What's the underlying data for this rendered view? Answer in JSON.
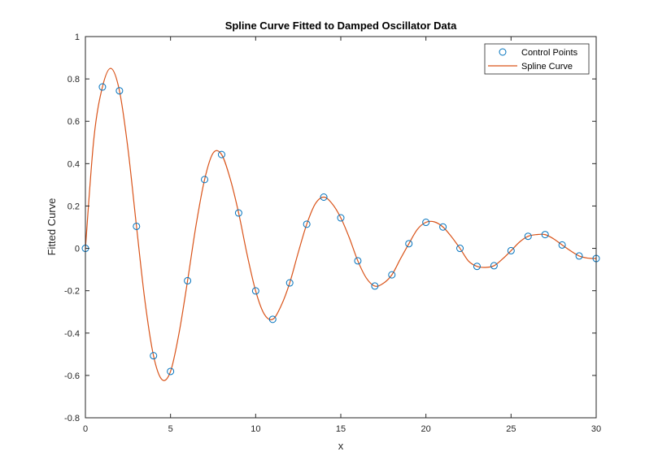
{
  "chart_data": {
    "type": "line",
    "title": "Spline Curve Fitted to Damped Oscillator Data",
    "xlabel": "x",
    "ylabel": "Fitted Curve",
    "xlim": [
      0,
      30
    ],
    "ylim": [
      -0.8,
      1
    ],
    "xticks": [
      "0",
      "5",
      "10",
      "15",
      "20",
      "25",
      "30"
    ],
    "yticks": [
      "-0.8",
      "-0.6",
      "-0.4",
      "-0.2",
      "0",
      "0.2",
      "0.4",
      "0.6",
      "0.8",
      "1"
    ],
    "grid": false,
    "legend_position": "top-right",
    "colors": {
      "markers": "#0072BD",
      "line": "#D95319",
      "axes": "#262626"
    },
    "series": [
      {
        "name": "Control Points",
        "kind": "markers",
        "marker": "circle",
        "x": [
          0,
          1,
          2,
          3,
          4,
          5,
          6,
          7,
          8,
          9,
          10,
          11,
          12,
          13,
          14,
          15,
          16,
          17,
          18,
          19,
          20,
          21,
          22,
          23,
          24,
          25,
          26,
          27,
          28,
          29,
          30
        ],
        "y": [
          0.0,
          0.762,
          0.744,
          0.104,
          -0.507,
          -0.581,
          -0.153,
          0.325,
          0.443,
          0.167,
          -0.201,
          -0.335,
          -0.163,
          0.114,
          0.242,
          0.144,
          -0.059,
          -0.178,
          -0.125,
          0.022,
          0.123,
          0.101,
          0.0,
          -0.085,
          -0.082,
          -0.011,
          0.057,
          0.065,
          0.016,
          -0.036,
          -0.048
        ]
      },
      {
        "name": "Spline Curve",
        "kind": "line",
        "x": [
          0,
          0.5,
          1,
          1.5,
          2,
          2.5,
          3,
          3.5,
          4,
          4.5,
          5,
          5.5,
          6,
          6.5,
          7,
          7.5,
          8,
          8.5,
          9,
          9.5,
          10,
          10.5,
          11,
          11.5,
          12,
          12.5,
          13,
          13.5,
          14,
          14.5,
          15,
          15.5,
          16,
          16.5,
          17,
          17.5,
          18,
          18.5,
          19,
          19.5,
          20,
          20.5,
          21,
          21.5,
          22,
          22.5,
          23,
          23.5,
          24,
          24.5,
          25,
          25.5,
          26,
          26.5,
          27,
          27.5,
          28,
          28.5,
          29,
          29.5,
          30
        ],
        "y": [
          0.0,
          0.52,
          0.762,
          0.85,
          0.744,
          0.47,
          0.104,
          -0.25,
          -0.507,
          -0.62,
          -0.581,
          -0.4,
          -0.153,
          0.11,
          0.325,
          0.45,
          0.443,
          0.33,
          0.167,
          -0.03,
          -0.201,
          -0.31,
          -0.335,
          -0.27,
          -0.163,
          -0.02,
          0.114,
          0.21,
          0.242,
          0.21,
          0.144,
          0.05,
          -0.059,
          -0.14,
          -0.178,
          -0.165,
          -0.125,
          -0.05,
          0.022,
          0.09,
          0.123,
          0.125,
          0.101,
          0.055,
          0.0,
          -0.06,
          -0.085,
          -0.09,
          -0.082,
          -0.05,
          -0.011,
          0.03,
          0.057,
          0.065,
          0.065,
          0.045,
          0.016,
          -0.012,
          -0.036,
          -0.046,
          -0.048
        ]
      }
    ]
  }
}
